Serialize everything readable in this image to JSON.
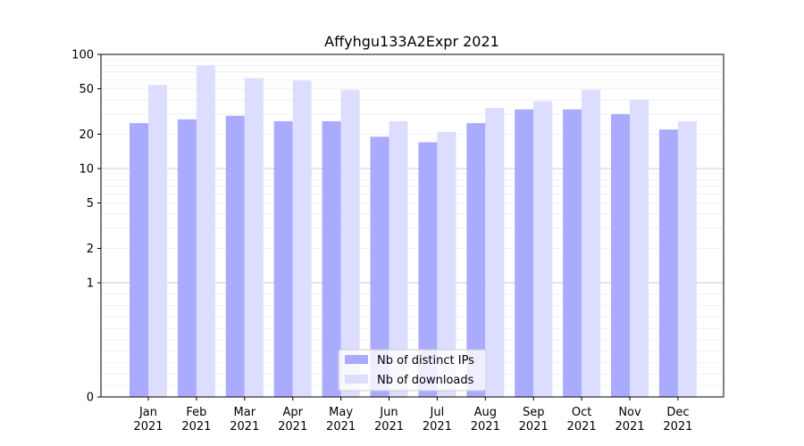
{
  "chart_data": {
    "type": "bar",
    "title": "Affyhgu133A2Expr 2021",
    "xlabel": "",
    "ylabel": "",
    "categories": [
      [
        "Jan",
        "2021"
      ],
      [
        "Feb",
        "2021"
      ],
      [
        "Mar",
        "2021"
      ],
      [
        "Apr",
        "2021"
      ],
      [
        "May",
        "2021"
      ],
      [
        "Jun",
        "2021"
      ],
      [
        "Jul",
        "2021"
      ],
      [
        "Aug",
        "2021"
      ],
      [
        "Sep",
        "2021"
      ],
      [
        "Oct",
        "2021"
      ],
      [
        "Nov",
        "2021"
      ],
      [
        "Dec",
        "2021"
      ]
    ],
    "series": [
      {
        "name": "Nb of distinct IPs",
        "color": "#aaaaff",
        "values": [
          25,
          27,
          29,
          26,
          26,
          19,
          17,
          25,
          33,
          33,
          30,
          22
        ]
      },
      {
        "name": "Nb of downloads",
        "color": "#ddddff",
        "values": [
          54,
          80,
          62,
          59,
          49,
          26,
          21,
          34,
          39,
          49,
          40,
          26
        ]
      }
    ],
    "yscale": "symlog",
    "ylim": [
      0,
      100
    ],
    "yticks": [
      0,
      1,
      2,
      5,
      10,
      20,
      50,
      100
    ],
    "legend": "lower-center",
    "grid": true
  }
}
